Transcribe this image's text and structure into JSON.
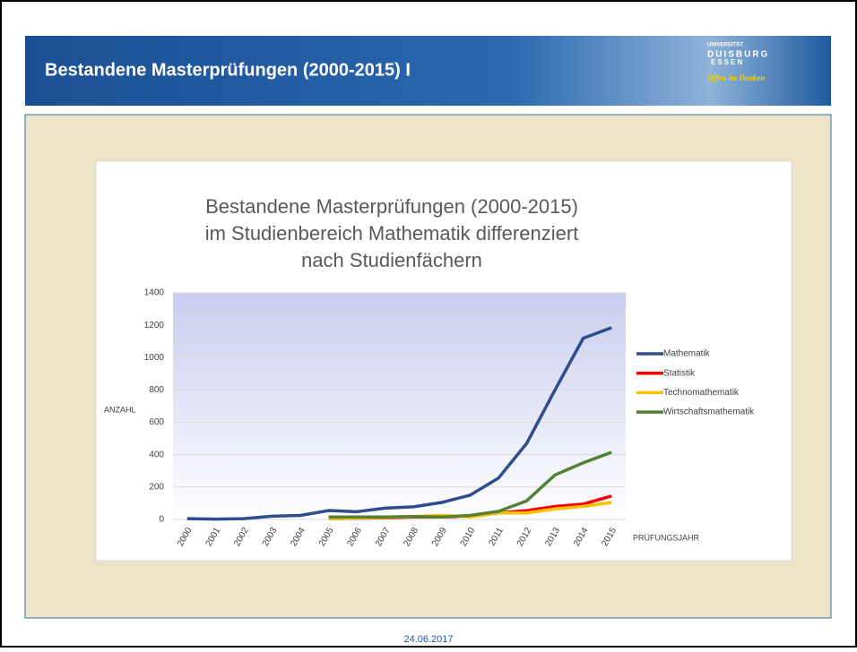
{
  "header": {
    "title": "Bestandene Masterprüfungen (2000-2015) I",
    "logo": {
      "top": "UNIVERSITÄT",
      "name1": "DUISBURG",
      "name2": "ESSEN",
      "motto": "Offen im Denken"
    }
  },
  "footer": {
    "date": "24.06.2017"
  },
  "chart_data": {
    "type": "line",
    "title": [
      "Bestandene Masterprüfungen (2000-2015)",
      "im Studienbereich Mathematik differenziert",
      "nach Studienfächern"
    ],
    "y_label": "ANZAHL",
    "x_label": "PRÜFUNGSJAHR",
    "categories": [
      "2000",
      "2001",
      "2002",
      "2003",
      "2004",
      "2005",
      "2006",
      "2007",
      "2008",
      "2009",
      "2010",
      "2011",
      "2012",
      "2013",
      "2014",
      "2015"
    ],
    "series": [
      {
        "name": "Mathematik",
        "color": "#2f4c8c",
        "values": [
          5,
          2,
          5,
          20,
          25,
          55,
          48,
          70,
          78,
          105,
          150,
          255,
          470,
          800,
          1120,
          1185
        ]
      },
      {
        "name": "Statistik",
        "color": "#ff0000",
        "values": [
          null,
          null,
          null,
          null,
          null,
          5,
          8,
          10,
          15,
          15,
          20,
          40,
          55,
          80,
          95,
          145
        ]
      },
      {
        "name": "Technomathematik",
        "color": "#ffc000",
        "values": [
          null,
          null,
          null,
          null,
          null,
          5,
          10,
          12,
          18,
          25,
          15,
          40,
          40,
          65,
          80,
          105
        ]
      },
      {
        "name": "Wirtschaftsmathematik",
        "color": "#548235",
        "values": [
          null,
          null,
          null,
          null,
          null,
          15,
          15,
          15,
          18,
          15,
          25,
          50,
          115,
          275,
          350,
          415
        ]
      }
    ],
    "ylim": [
      0,
      1400
    ],
    "yticks": [
      0,
      200,
      400,
      600,
      800,
      1000,
      1200,
      1400
    ],
    "grid": true,
    "legend": "right"
  }
}
